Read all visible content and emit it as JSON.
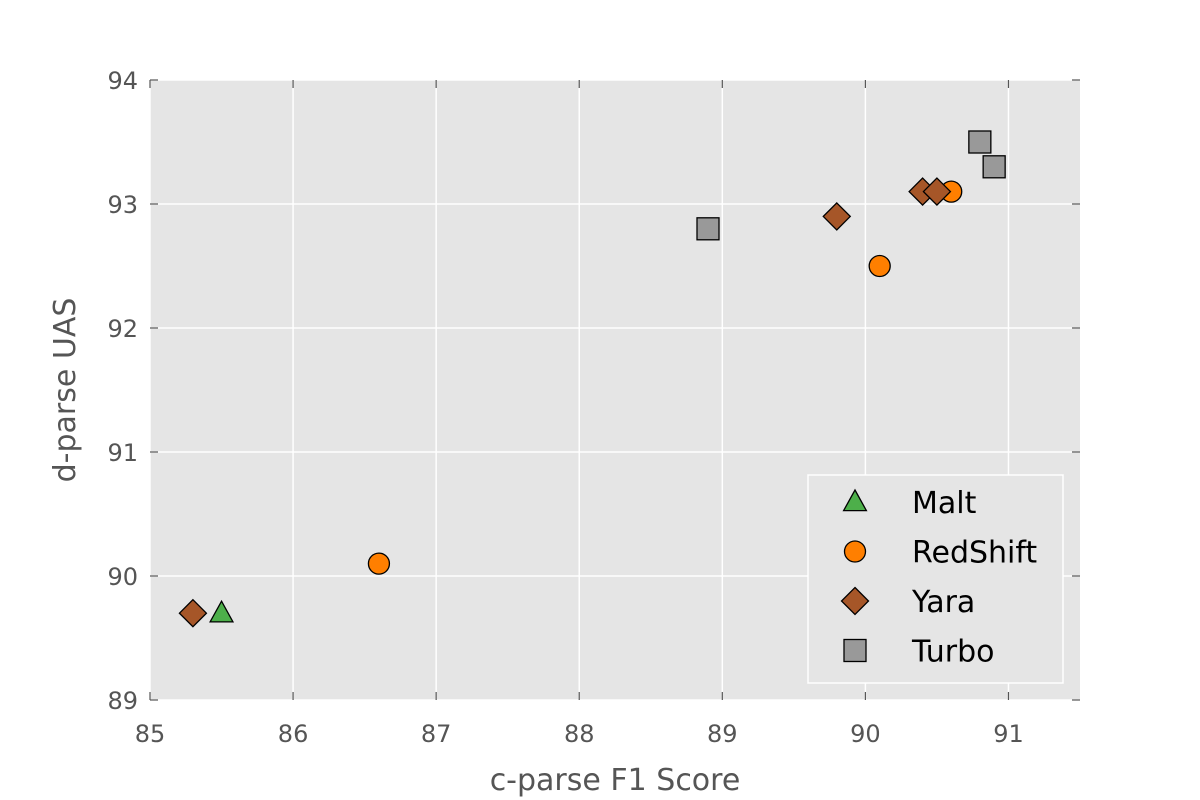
{
  "chart_data": {
    "type": "scatter",
    "xlabel": "c-parse F1 Score",
    "ylabel": "d-parse UAS",
    "xlim": [
      85,
      91.5
    ],
    "ylim": [
      89,
      94
    ],
    "xticks": [
      "85",
      "86",
      "87",
      "88",
      "89",
      "90",
      "91"
    ],
    "yticks": [
      "89",
      "90",
      "91",
      "92",
      "93",
      "94"
    ],
    "grid": true,
    "legend_position": "bottom-right",
    "series": [
      {
        "name": "Malt",
        "marker": "triangle",
        "color": "#4daf4a",
        "points": [
          {
            "x": 85.5,
            "y": 89.7
          }
        ]
      },
      {
        "name": "RedShift",
        "marker": "circle",
        "color": "#ff7f00",
        "points": [
          {
            "x": 86.6,
            "y": 90.1
          },
          {
            "x": 90.1,
            "y": 92.5
          },
          {
            "x": 90.6,
            "y": 93.1
          }
        ]
      },
      {
        "name": "Yara",
        "marker": "diamond",
        "color": "#a65628",
        "points": [
          {
            "x": 85.3,
            "y": 89.7
          },
          {
            "x": 89.8,
            "y": 92.9
          },
          {
            "x": 90.4,
            "y": 93.1
          },
          {
            "x": 90.5,
            "y": 93.1
          }
        ]
      },
      {
        "name": "Turbo",
        "marker": "square",
        "color": "#999999",
        "points": [
          {
            "x": 88.9,
            "y": 92.8
          },
          {
            "x": 90.8,
            "y": 93.5
          },
          {
            "x": 90.9,
            "y": 93.3
          }
        ]
      }
    ]
  }
}
